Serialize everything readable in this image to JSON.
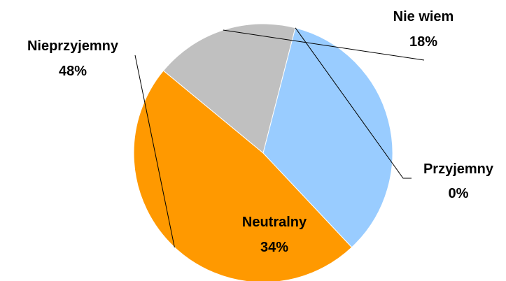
{
  "chart_data": {
    "type": "pie",
    "title": "",
    "slices": [
      {
        "label": "Nie wiem",
        "value": 18,
        "value_label": "18%",
        "color": "#C0C0C0"
      },
      {
        "label": "Przyjemny",
        "value": 0,
        "value_label": "0%",
        "color": "#FFFFFF"
      },
      {
        "label": "Neutralny",
        "value": 34,
        "value_label": "34%",
        "color": "#99CCFF"
      },
      {
        "label": "Nieprzyjemny",
        "value": 48,
        "value_label": "48%",
        "color": "#FF9900"
      }
    ]
  }
}
